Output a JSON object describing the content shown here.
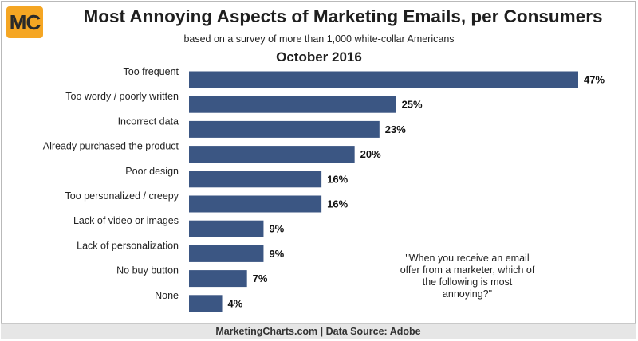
{
  "logo": {
    "text": "MC"
  },
  "colors": {
    "bar": "#3b5683",
    "footer_bg": "#e6e6e6"
  },
  "chart_data": {
    "type": "bar",
    "orientation": "horizontal",
    "title": "Most Annoying Aspects of Marketing Emails, per Consumers",
    "subtitle": "based on a survey of more than 1,000 white-collar Americans",
    "period": "October 2016",
    "categories": [
      "Too frequent",
      "Too wordy / poorly written",
      "Incorrect data",
      "Already purchased the product",
      "Poor design",
      "Too personalized / creepy",
      "Lack of video or images",
      "Lack of personalization",
      "No buy button",
      "None"
    ],
    "values": [
      47,
      25,
      23,
      20,
      16,
      16,
      9,
      9,
      7,
      4
    ],
    "value_labels": [
      "47%",
      "25%",
      "23%",
      "20%",
      "16%",
      "16%",
      "9%",
      "9%",
      "7%",
      "4%"
    ],
    "xlabel": "",
    "ylabel": "",
    "xlim": [
      0,
      47
    ],
    "grid": false,
    "annotation": "\"When you receive an email offer from a marketer, which of the following is most annoying?\""
  },
  "footer": {
    "text": "MarketingCharts.com | Data Source: Adobe"
  }
}
